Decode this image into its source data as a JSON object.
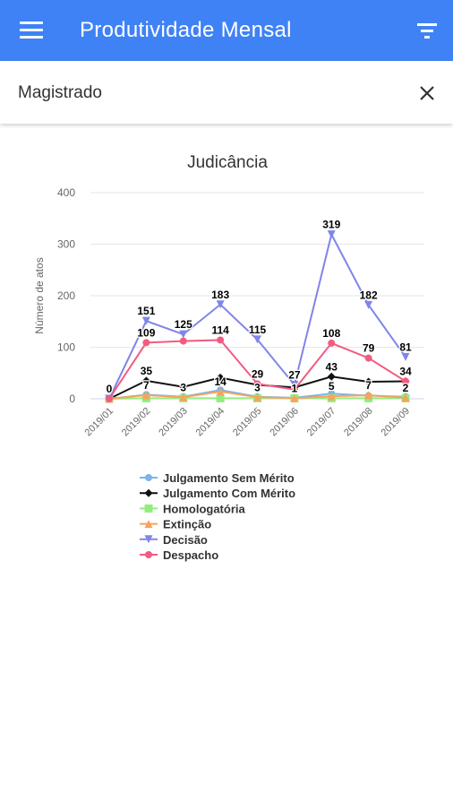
{
  "app_bar": {
    "title": "Produtividade Mensal",
    "menu_icon": "menu-icon",
    "filter_icon": "filter-icon"
  },
  "filter_bar": {
    "label": "Magistrado",
    "close_icon": "close-icon"
  },
  "chart_data": {
    "type": "line",
    "title": "Judicância",
    "xlabel": "",
    "ylabel": "Número de atos",
    "ylim": [
      0,
      400
    ],
    "yticks": [
      0,
      100,
      200,
      300,
      400
    ],
    "categories": [
      "2019/01",
      "2019/02",
      "2019/03",
      "2019/04",
      "2019/05",
      "2019/06",
      "2019/07",
      "2019/08",
      "2019/09"
    ],
    "grid": true,
    "legend_placement": "bottom",
    "series": [
      {
        "name": "Julgamento Sem Mérito",
        "color": "#7cb3ea",
        "marker": "circle",
        "values": [
          0,
          8,
          4,
          17,
          4,
          2,
          10,
          6,
          4
        ],
        "labels": []
      },
      {
        "name": "Julgamento Com Mérito",
        "color": "#111111",
        "marker": "diamond",
        "values": [
          0,
          35,
          23,
          41,
          27,
          22,
          43,
          33,
          34
        ],
        "labels": [
          "",
          "35",
          "",
          "",
          "",
          "",
          "43",
          "",
          ""
        ]
      },
      {
        "name": "Homologatória",
        "color": "#90ee7e",
        "marker": "square",
        "values": [
          0,
          1,
          1,
          1,
          1,
          1,
          1,
          1,
          1
        ],
        "labels": []
      },
      {
        "name": "Extinção",
        "color": "#f7a35c",
        "marker": "triangle",
        "values": [
          0,
          7,
          3,
          14,
          3,
          1,
          5,
          7,
          2
        ],
        "labels": [
          "",
          "7",
          "3",
          "14",
          "3",
          "1",
          "5",
          "7",
          "2"
        ]
      },
      {
        "name": "Decisão",
        "color": "#8085e9",
        "marker": "triangle-down",
        "values": [
          0,
          151,
          125,
          183,
          115,
          27,
          319,
          182,
          81
        ],
        "labels": [
          "0",
          "151",
          "125",
          "183",
          "115",
          "27",
          "319",
          "182",
          "81"
        ]
      },
      {
        "name": "Despacho",
        "color": "#f15c80",
        "marker": "circle",
        "values": [
          0,
          109,
          112,
          114,
          29,
          18,
          108,
          79,
          34
        ],
        "labels": [
          "",
          "109",
          "",
          "114",
          "29",
          "",
          "108",
          "79",
          "34"
        ]
      }
    ]
  }
}
